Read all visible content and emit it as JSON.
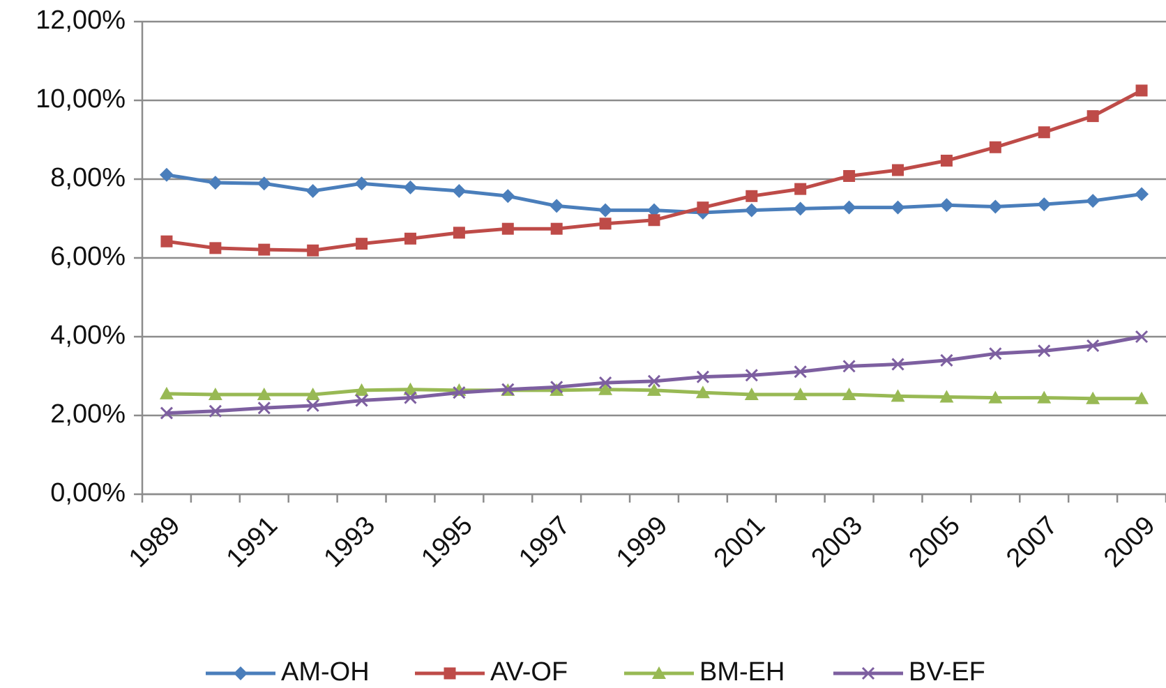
{
  "chart_data": {
    "type": "line",
    "categories": [
      "1989",
      null,
      "1991",
      null,
      "1993",
      null,
      "1995",
      null,
      "1997",
      null,
      "1999",
      null,
      "2001",
      null,
      "2003",
      null,
      "2005",
      null,
      "2007",
      null,
      "2009"
    ],
    "series": [
      {
        "name": "AM-OH",
        "color": "#4a7ebb",
        "marker": "diamond",
        "values": [
          8.11,
          7.91,
          7.89,
          7.7,
          7.89,
          7.79,
          7.7,
          7.57,
          7.32,
          7.21,
          7.21,
          7.15,
          7.21,
          7.25,
          7.28,
          7.28,
          7.34,
          7.3,
          7.36,
          7.45,
          7.62
        ]
      },
      {
        "name": "AV-OF",
        "color": "#be4b48",
        "marker": "square",
        "values": [
          6.42,
          6.25,
          6.21,
          6.19,
          6.36,
          6.49,
          6.64,
          6.74,
          6.74,
          6.87,
          6.96,
          7.28,
          7.57,
          7.75,
          8.08,
          8.23,
          8.47,
          8.81,
          9.19,
          9.6,
          10.25
        ]
      },
      {
        "name": "BM-EH",
        "color": "#98b954",
        "marker": "triangle",
        "values": [
          2.55,
          2.53,
          2.53,
          2.53,
          2.64,
          2.66,
          2.64,
          2.64,
          2.64,
          2.66,
          2.64,
          2.58,
          2.53,
          2.53,
          2.53,
          2.49,
          2.47,
          2.45,
          2.45,
          2.43,
          2.43
        ]
      },
      {
        "name": "BV-EF",
        "color": "#7d5fa0",
        "marker": "x",
        "values": [
          2.06,
          2.11,
          2.19,
          2.25,
          2.38,
          2.45,
          2.58,
          2.66,
          2.72,
          2.83,
          2.87,
          2.98,
          3.02,
          3.11,
          3.25,
          3.3,
          3.4,
          3.57,
          3.64,
          3.77,
          4.0
        ]
      }
    ],
    "ylim": [
      0,
      12
    ],
    "yticks": [
      {
        "value": 0,
        "label": "0,00%"
      },
      {
        "value": 2,
        "label": "2,00%"
      },
      {
        "value": 4,
        "label": "4,00%"
      },
      {
        "value": 6,
        "label": "6,00%"
      },
      {
        "value": 8,
        "label": "8,00%"
      },
      {
        "value": 10,
        "label": "10,00%"
      },
      {
        "value": 12,
        "label": "12,00%"
      }
    ],
    "grid": true,
    "legend": "bottom"
  }
}
